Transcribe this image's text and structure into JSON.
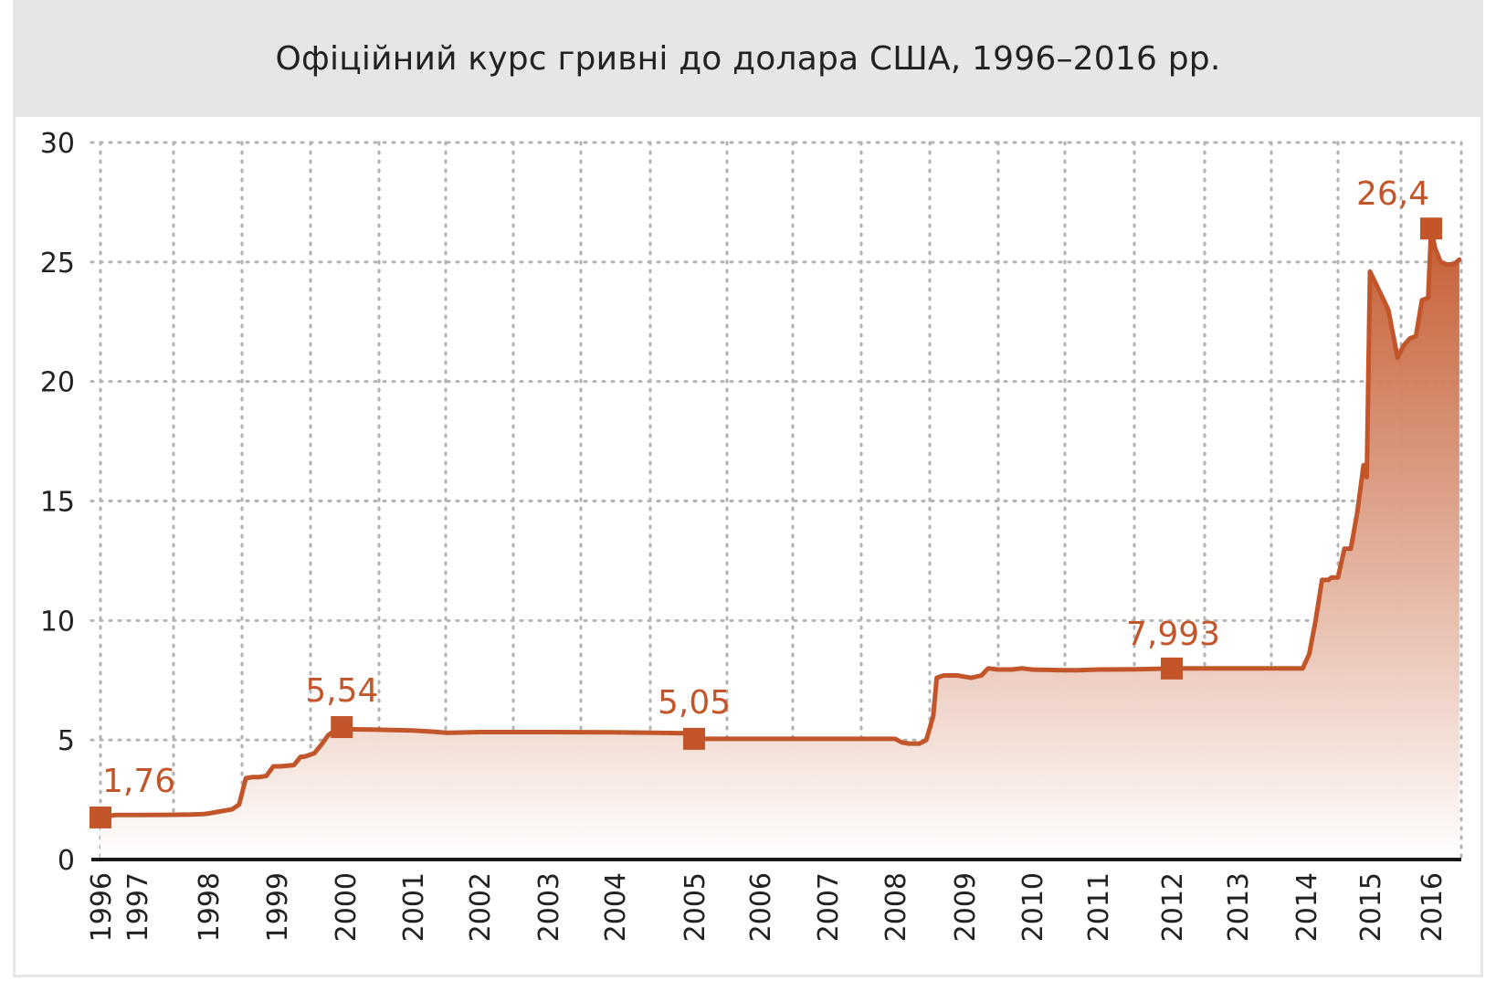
{
  "title": "Офіційний курс гривні до долара США, 1996–2016 рр.",
  "colors": {
    "line": "#c2562a",
    "fill_top": "#c2562a",
    "fill_bottom": "#ffffff",
    "grid": "#b3b3b3",
    "title_bg": "#e6e6e6"
  },
  "chart_data": {
    "type": "area",
    "title": "Офіційний курс гривні до долара США, 1996–2016 рр.",
    "xlabel": "",
    "ylabel": "",
    "ylim": [
      0,
      30
    ],
    "yticks": [
      0,
      5,
      10,
      15,
      20,
      25,
      30
    ],
    "xlim": [
      1996.7,
      2016.8
    ],
    "xticks": [
      {
        "label": "1996",
        "x": 1996.7
      },
      {
        "label": "1997",
        "x": 1997.2
      },
      {
        "label": "1998",
        "x": 1998.0
      },
      {
        "label": "1999",
        "x": 1999.0
      },
      {
        "label": "2000",
        "x": 2000.0
      },
      {
        "label": "2001",
        "x": 2001.0
      },
      {
        "label": "2002",
        "x": 2002.0
      },
      {
        "label": "2003",
        "x": 2003.0
      },
      {
        "label": "2004",
        "x": 2004.0
      },
      {
        "label": "2005",
        "x": 2005.0
      },
      {
        "label": "2006",
        "x": 2006.0
      },
      {
        "label": "2007",
        "x": 2007.0
      },
      {
        "label": "2008",
        "x": 2008.0
      },
      {
        "label": "2009",
        "x": 2009.0
      },
      {
        "label": "2010",
        "x": 2010.0
      },
      {
        "label": "2011",
        "x": 2011.0
      },
      {
        "label": "2012",
        "x": 2012.0
      },
      {
        "label": "2013",
        "x": 2013.0
      },
      {
        "label": "2014",
        "x": 2014.0
      },
      {
        "label": "2015",
        "x": 2015.0
      },
      {
        "label": "2016",
        "x": 2016.0
      }
    ],
    "grid": true,
    "series": [
      {
        "x": [
          1996.7,
          1996.9,
          1997.2,
          1997.5,
          1997.8,
          1997.95,
          1998.05,
          1998.35,
          1998.45,
          1998.55,
          1998.65,
          1998.75,
          1998.85,
          1998.95,
          1999.05,
          1999.25,
          1999.35,
          1999.4,
          1999.55,
          1999.65,
          1999.75,
          1999.85,
          1999.95,
          2000.1,
          2000.5,
          2001.0,
          2001.3,
          2001.5,
          2002.0,
          2003.0,
          2004.0,
          2004.5,
          2004.9,
          2005.0,
          2005.1,
          2006.0,
          2007.0,
          2007.5,
          2008.0,
          2008.1,
          2008.2,
          2008.35,
          2008.45,
          2008.55,
          2008.6,
          2008.7,
          2008.9,
          2009.0,
          2009.1,
          2009.25,
          2009.35,
          2009.5,
          2009.7,
          2009.85,
          2010.0,
          2010.3,
          2010.5,
          2010.7,
          2011.0,
          2011.5,
          2012.0,
          2012.5,
          2013.0,
          2013.5,
          2013.85,
          2013.95,
          2014.05,
          2014.15,
          2014.25,
          2014.35,
          2014.4,
          2014.5,
          2014.6,
          2014.7,
          2014.8,
          2014.9,
          2014.95,
          2015.0,
          2015.15,
          2015.3,
          2015.45,
          2015.55,
          2015.65,
          2015.75,
          2015.85,
          2015.95,
          2016.0,
          2016.1,
          2016.25,
          2016.4,
          2016.6,
          2016.75
        ],
        "y": [
          1.76,
          1.86,
          1.86,
          1.87,
          1.88,
          1.9,
          1.95,
          2.1,
          2.3,
          3.4,
          3.45,
          3.45,
          3.5,
          3.9,
          3.9,
          3.95,
          4.3,
          4.3,
          4.45,
          4.8,
          5.2,
          5.4,
          5.54,
          5.45,
          5.43,
          5.4,
          5.35,
          5.3,
          5.33,
          5.33,
          5.32,
          5.3,
          5.28,
          5.05,
          5.05,
          5.05,
          5.05,
          5.05,
          5.05,
          4.9,
          4.85,
          4.85,
          5.0,
          6.0,
          7.6,
          7.7,
          7.7,
          7.65,
          7.6,
          7.7,
          8.0,
          7.95,
          7.95,
          8.0,
          7.95,
          7.93,
          7.92,
          7.92,
          7.95,
          7.96,
          7.993,
          7.993,
          7.993,
          7.993,
          7.993,
          7.993,
          8.6,
          10.0,
          11.7,
          11.7,
          11.8,
          11.8,
          13.0,
          13.0,
          14.5,
          16.5,
          16.0,
          24.6,
          23.8,
          23.0,
          21.0,
          21.5,
          21.8,
          21.9,
          23.4,
          23.5,
          26.4,
          25.6,
          25.0,
          24.9,
          24.9,
          25.1
        ]
      }
    ],
    "annotations": [
      {
        "label": "1,76",
        "x": 1996.7,
        "y": 1.76
      },
      {
        "label": "5,54",
        "x": 1999.95,
        "y": 5.54
      },
      {
        "label": "5,05",
        "x": 2005.0,
        "y": 5.05
      },
      {
        "label": "7,993",
        "x": 2012.0,
        "y": 7.993
      },
      {
        "label": "26,4",
        "x": 2016.0,
        "y": 26.4
      }
    ]
  }
}
